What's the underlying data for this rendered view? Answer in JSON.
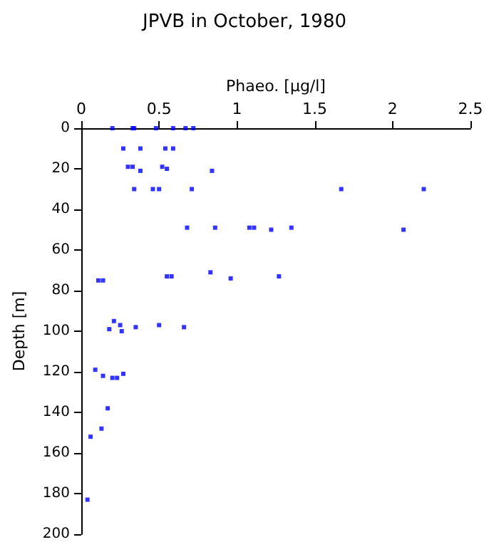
{
  "chart_data": {
    "type": "scatter",
    "title": "JPVB in October, 1980",
    "xlabel": "Phaeo. [µg/l]",
    "ylabel": "Depth [m]",
    "x": [
      0.2,
      0.33,
      0.34,
      0.48,
      0.59,
      0.67,
      0.72,
      0.27,
      0.38,
      0.54,
      0.59,
      0.3,
      0.33,
      0.38,
      0.52,
      0.55,
      0.84,
      0.34,
      0.46,
      0.5,
      0.71,
      1.67,
      2.2,
      0.68,
      0.86,
      1.08,
      1.11,
      1.22,
      1.35,
      2.07,
      0.11,
      0.14,
      0.55,
      0.58,
      0.83,
      0.96,
      1.27,
      0.21,
      0.18,
      0.25,
      0.26,
      0.35,
      0.5,
      0.66,
      0.09,
      0.14,
      0.2,
      0.23,
      0.27,
      0.17,
      0.13,
      0.06,
      0.04
    ],
    "values": [
      0,
      0,
      0,
      0,
      0,
      0,
      0,
      10,
      10,
      10,
      10,
      19,
      19,
      21,
      19,
      20,
      21,
      30,
      30,
      30,
      30,
      30,
      30,
      49,
      49,
      49,
      49,
      50,
      49,
      50,
      75,
      75,
      73,
      73,
      71,
      74,
      73,
      95,
      99,
      97,
      100,
      98,
      97,
      98,
      119,
      122,
      123,
      123,
      121,
      138,
      148,
      152,
      183
    ],
    "color": "#0000ff",
    "marker": "square",
    "xlim": [
      0,
      2.5
    ],
    "xticks": [
      0,
      0.5,
      1,
      1.5,
      2,
      2.5
    ],
    "ylim": [
      200,
      0
    ],
    "yticks": [
      0,
      20,
      40,
      60,
      80,
      100,
      120,
      140,
      160,
      180,
      200
    ],
    "grid": false
  }
}
